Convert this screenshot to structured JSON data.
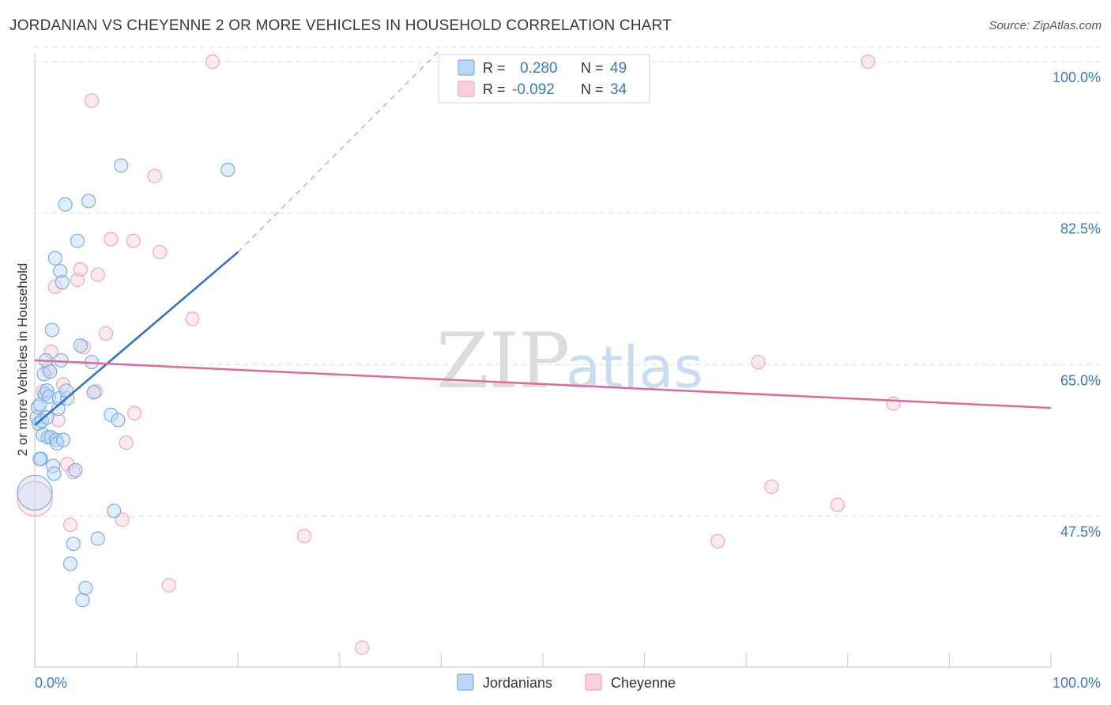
{
  "title": "JORDANIAN VS CHEYENNE 2 OR MORE VEHICLES IN HOUSEHOLD CORRELATION CHART",
  "source": "Source: ZipAtlas.com",
  "colors": {
    "jordanians": "#7aaee8",
    "jordanians_line": "#2e6fd0",
    "cheyenne": "#f4a6bf",
    "cheyenne_line": "#e0699a",
    "axis_text": "#3a78cc",
    "grid": "#dddddd"
  },
  "legend_stats": [
    {
      "r_label": "R =",
      "r_value": "0.280",
      "n_label": "N =",
      "n_value": "49"
    },
    {
      "r_label": "R =",
      "r_value": "-0.092",
      "n_label": "N =",
      "n_value": "34"
    }
  ],
  "watermark": {
    "zip": "ZIP",
    "atlas": "atlas"
  },
  "chart_data": {
    "type": "scatter",
    "xlabel": "",
    "ylabel": "2 or more Vehicles in Household",
    "xlim": [
      0,
      100
    ],
    "ylim": [
      30,
      102
    ],
    "x_tick_labels": [
      "0.0%",
      "100.0%"
    ],
    "y_ticks": [
      47.5,
      65.0,
      82.5,
      100.0
    ],
    "y_tick_labels": [
      "47.5%",
      "65.0%",
      "82.5%",
      "100.0%"
    ],
    "grid": true,
    "legend": [
      {
        "name": "Jordanians"
      },
      {
        "name": "Cheyenne"
      }
    ],
    "series": [
      {
        "name": "Jordanians",
        "r": 0.28,
        "n": 49,
        "trend": {
          "x": [
            0.0,
            20.0
          ],
          "y": [
            58.0,
            78.0
          ]
        },
        "trend_extension": {
          "x": [
            20.0,
            40.0
          ],
          "y": [
            78.0,
            101.5
          ]
        },
        "points": [
          {
            "x": 0.0,
            "y": 50.2,
            "big": true
          },
          {
            "x": 0.2,
            "y": 58.9
          },
          {
            "x": 0.3,
            "y": 60.1
          },
          {
            "x": 0.4,
            "y": 58.2
          },
          {
            "x": 0.5,
            "y": 60.4
          },
          {
            "x": 0.6,
            "y": 54.1
          },
          {
            "x": 0.7,
            "y": 58.5
          },
          {
            "x": 0.8,
            "y": 56.9
          },
          {
            "x": 0.9,
            "y": 63.9
          },
          {
            "x": 1.0,
            "y": 61.6
          },
          {
            "x": 1.1,
            "y": 65.5
          },
          {
            "x": 1.2,
            "y": 62.0
          },
          {
            "x": 1.3,
            "y": 56.6
          },
          {
            "x": 1.4,
            "y": 61.3
          },
          {
            "x": 1.5,
            "y": 64.2
          },
          {
            "x": 1.6,
            "y": 56.6
          },
          {
            "x": 1.7,
            "y": 69.0
          },
          {
            "x": 1.8,
            "y": 53.3
          },
          {
            "x": 1.9,
            "y": 52.4
          },
          {
            "x": 2.0,
            "y": 77.3
          },
          {
            "x": 2.1,
            "y": 56.3
          },
          {
            "x": 2.2,
            "y": 55.9
          },
          {
            "x": 2.3,
            "y": 59.9
          },
          {
            "x": 2.4,
            "y": 61.1
          },
          {
            "x": 2.5,
            "y": 75.8
          },
          {
            "x": 2.6,
            "y": 65.5
          },
          {
            "x": 2.7,
            "y": 74.5
          },
          {
            "x": 3.0,
            "y": 83.5
          },
          {
            "x": 3.2,
            "y": 61.1
          },
          {
            "x": 3.5,
            "y": 42.0
          },
          {
            "x": 3.8,
            "y": 44.3
          },
          {
            "x": 4.0,
            "y": 52.8
          },
          {
            "x": 4.2,
            "y": 79.3
          },
          {
            "x": 4.5,
            "y": 67.2
          },
          {
            "x": 4.7,
            "y": 37.8
          },
          {
            "x": 5.0,
            "y": 39.2
          },
          {
            "x": 5.3,
            "y": 83.9
          },
          {
            "x": 5.6,
            "y": 65.3
          },
          {
            "x": 5.8,
            "y": 61.8
          },
          {
            "x": 6.2,
            "y": 44.9
          },
          {
            "x": 7.5,
            "y": 59.2
          },
          {
            "x": 7.8,
            "y": 48.1
          },
          {
            "x": 8.2,
            "y": 58.6
          },
          {
            "x": 8.5,
            "y": 88.0
          },
          {
            "x": 19.0,
            "y": 87.5
          },
          {
            "x": 0.5,
            "y": 54.1
          },
          {
            "x": 1.2,
            "y": 58.9
          },
          {
            "x": 2.8,
            "y": 56.3
          },
          {
            "x": 3.1,
            "y": 62.0
          }
        ]
      },
      {
        "name": "Cheyenne",
        "r": -0.092,
        "n": 34,
        "trend": {
          "x": [
            0.0,
            100.0
          ],
          "y": [
            65.5,
            60.0
          ]
        },
        "points": [
          {
            "x": 0.0,
            "y": 49.5,
            "big": true
          },
          {
            "x": 0.8,
            "y": 61.9
          },
          {
            "x": 1.3,
            "y": 64.5
          },
          {
            "x": 1.6,
            "y": 66.5
          },
          {
            "x": 2.0,
            "y": 74.0
          },
          {
            "x": 2.3,
            "y": 58.6
          },
          {
            "x": 2.8,
            "y": 62.7
          },
          {
            "x": 3.2,
            "y": 53.5
          },
          {
            "x": 3.5,
            "y": 46.5
          },
          {
            "x": 3.8,
            "y": 52.6
          },
          {
            "x": 4.2,
            "y": 74.8
          },
          {
            "x": 4.5,
            "y": 76.0
          },
          {
            "x": 4.8,
            "y": 67.0
          },
          {
            "x": 5.6,
            "y": 95.5
          },
          {
            "x": 6.0,
            "y": 61.9
          },
          {
            "x": 6.2,
            "y": 75.4
          },
          {
            "x": 7.0,
            "y": 68.6
          },
          {
            "x": 7.5,
            "y": 79.5
          },
          {
            "x": 8.6,
            "y": 47.1
          },
          {
            "x": 9.0,
            "y": 56.0
          },
          {
            "x": 9.7,
            "y": 79.3
          },
          {
            "x": 9.8,
            "y": 59.4
          },
          {
            "x": 11.8,
            "y": 86.8
          },
          {
            "x": 12.3,
            "y": 78.0
          },
          {
            "x": 13.2,
            "y": 39.5
          },
          {
            "x": 15.5,
            "y": 70.3
          },
          {
            "x": 17.5,
            "y": 100.0
          },
          {
            "x": 26.5,
            "y": 45.2
          },
          {
            "x": 32.2,
            "y": 32.3
          },
          {
            "x": 67.2,
            "y": 44.6
          },
          {
            "x": 71.2,
            "y": 65.3
          },
          {
            "x": 72.5,
            "y": 50.9
          },
          {
            "x": 79.0,
            "y": 48.8
          },
          {
            "x": 82.0,
            "y": 100.0
          },
          {
            "x": 84.5,
            "y": 60.5
          }
        ]
      }
    ]
  }
}
